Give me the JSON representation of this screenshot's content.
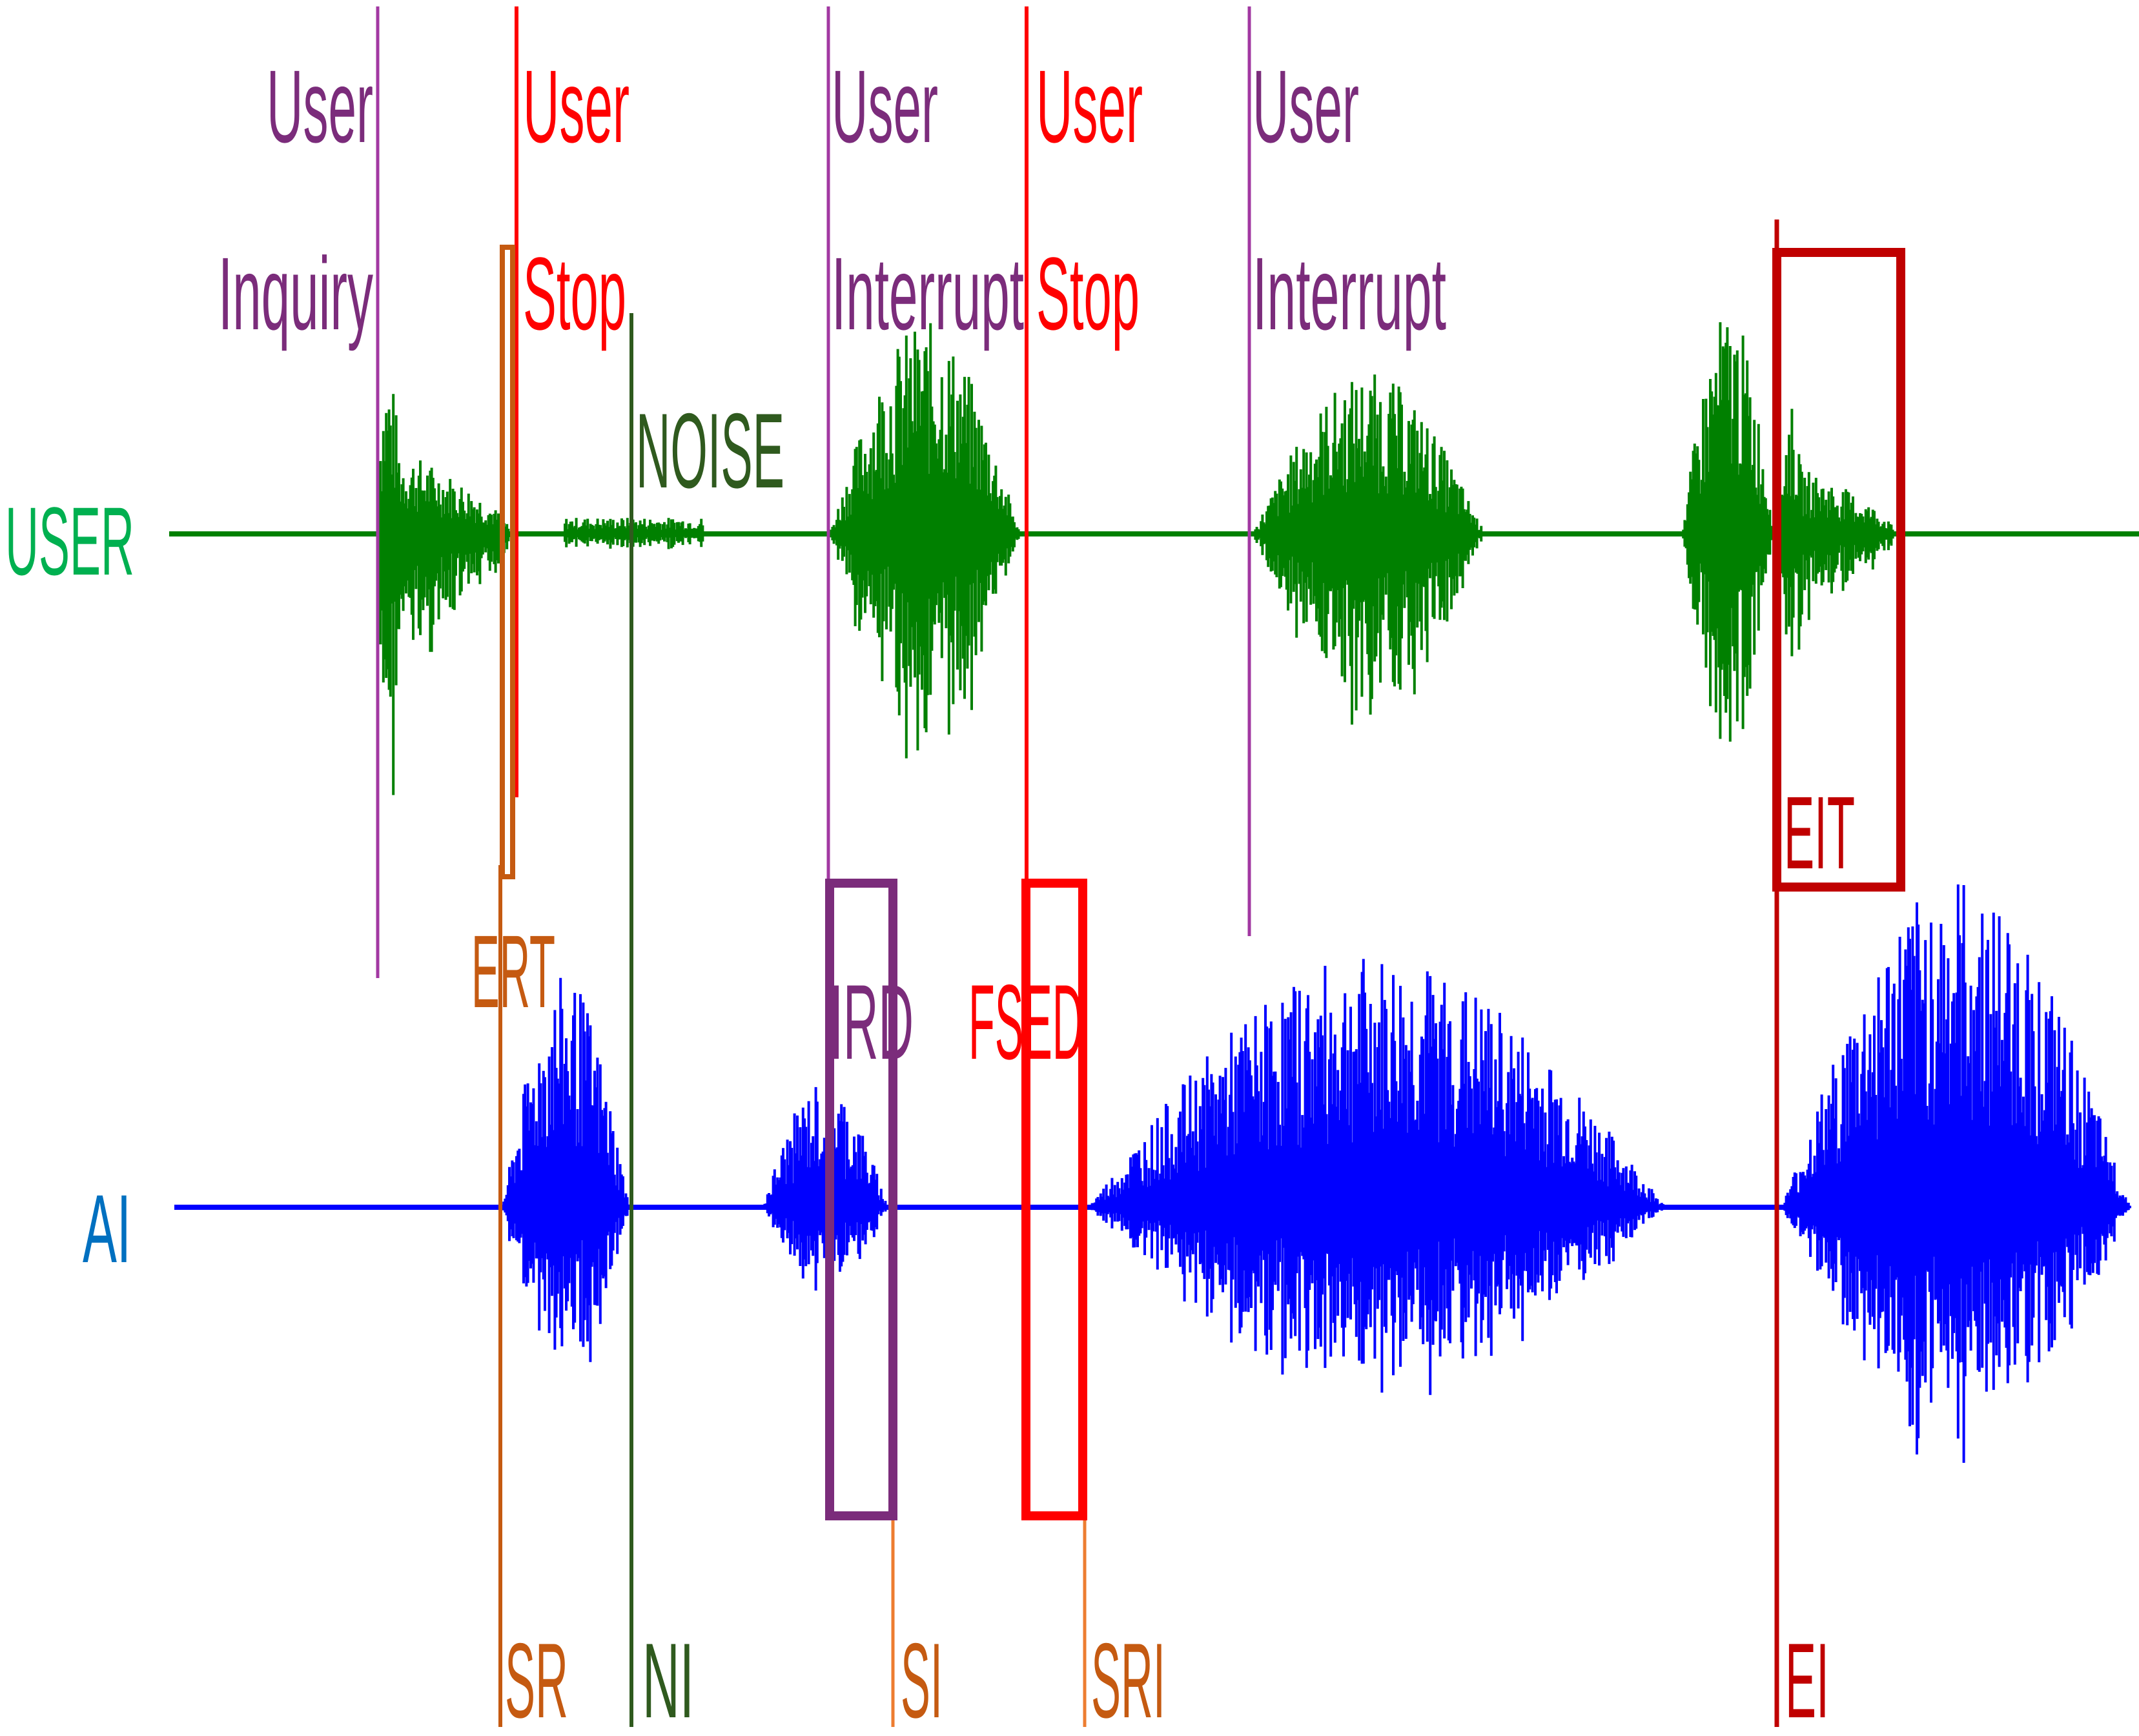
{
  "tracks": {
    "user": {
      "label": "USER",
      "color": "#00b050",
      "wave_color": "#008000"
    },
    "ai": {
      "label": "AI",
      "color": "#0070c0",
      "wave_color": "#0000ff"
    }
  },
  "events": {
    "user_inquiry": {
      "line1": "User",
      "line2": "Inquiry",
      "color": "#7b2c7b"
    },
    "user_stop_1": {
      "line1": "User",
      "line2": "Stop",
      "color": "#ff0000"
    },
    "user_interrupt_1": {
      "line1": "User",
      "line2": "Interrupt",
      "color": "#7b2c7b"
    },
    "user_stop_2": {
      "line1": "User",
      "line2": "Stop",
      "color": "#ff0000"
    },
    "user_interrupt_2": {
      "line1": "User",
      "line2": "Interrupt",
      "color": "#7b2c7b"
    },
    "noise": {
      "label": "NOISE",
      "color": "#2f5a1e"
    }
  },
  "boxes": {
    "ert": {
      "label": "ERT",
      "color": "#c55a11"
    },
    "ird": {
      "label": "IRD",
      "color": "#7b2c7b"
    },
    "fsed": {
      "label": "FSED",
      "color": "#ff0000"
    },
    "eit": {
      "label": "EIT",
      "color": "#c00000"
    }
  },
  "markers": {
    "sr": {
      "label": "SR",
      "color": "#c55a11"
    },
    "ni": {
      "label": "NI",
      "color": "#2f5a1e"
    },
    "si": {
      "label": "SI",
      "color": "#ed7d31"
    },
    "sri": {
      "label": "SRI",
      "color": "#c55a11"
    },
    "ei": {
      "label": "EI",
      "color": "#c00000"
    }
  }
}
